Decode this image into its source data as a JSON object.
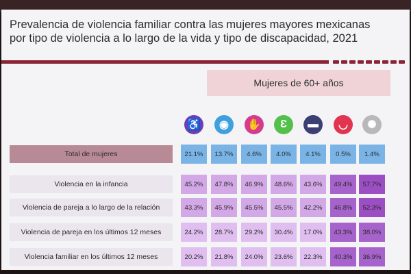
{
  "title_line1": "Prevalencia de violencia familiar contra las mujeres mayores mexicanas",
  "title_line2": "por tipo de violencia a lo largo de la vida y tipo de discapacidad, 2021",
  "group_header": "Mujeres de 60+ años",
  "icons": [
    {
      "name": "wheelchair-icon",
      "glyph": "♿",
      "color": "#6a3fb5"
    },
    {
      "name": "eye-icon",
      "glyph": "◉",
      "color": "#3fa1dc"
    },
    {
      "name": "hands-icon",
      "glyph": "✋",
      "color": "#d63a8f"
    },
    {
      "name": "ear-icon",
      "glyph": "Ɛ",
      "color": "#53c04a"
    },
    {
      "name": "bed-icon",
      "glyph": "▬",
      "color": "#3b3f73"
    },
    {
      "name": "mouth-icon",
      "glyph": "◡",
      "color": "#e0344f"
    },
    {
      "name": "brain-icon",
      "glyph": "✺",
      "color": "#b8b8b8"
    }
  ],
  "chart_data": {
    "type": "table",
    "rows": [
      {
        "label": "Total de mujeres",
        "values": [
          "21.1%",
          "13.7%",
          "4.6%",
          "4.0%",
          "4.1%",
          "0.5%",
          "1.4%"
        ]
      },
      {
        "label": "Violencia en la infancia",
        "values": [
          "45.2%",
          "47.8%",
          "46.9%",
          "48.6%",
          "43.6%",
          "49.4%",
          "57.7%"
        ]
      },
      {
        "label": "Violencia de pareja a lo largo de la relación",
        "values": [
          "43.3%",
          "45.9%",
          "45.5%",
          "45.5%",
          "42.2%",
          "46.8%",
          "52.3%"
        ]
      },
      {
        "label": "Violencia de pareja en los últimos 12 meses",
        "values": [
          "24.2%",
          "28.7%",
          "29.2%",
          "30.4%",
          "17.0%",
          "43.3%",
          "38.0%"
        ]
      },
      {
        "label": "Violencia familiar en los últimos 12 meses",
        "values": [
          "20.2%",
          "21.8%",
          "24.0%",
          "23.6%",
          "22.3%",
          "40.3%",
          "36.9%"
        ]
      }
    ]
  }
}
